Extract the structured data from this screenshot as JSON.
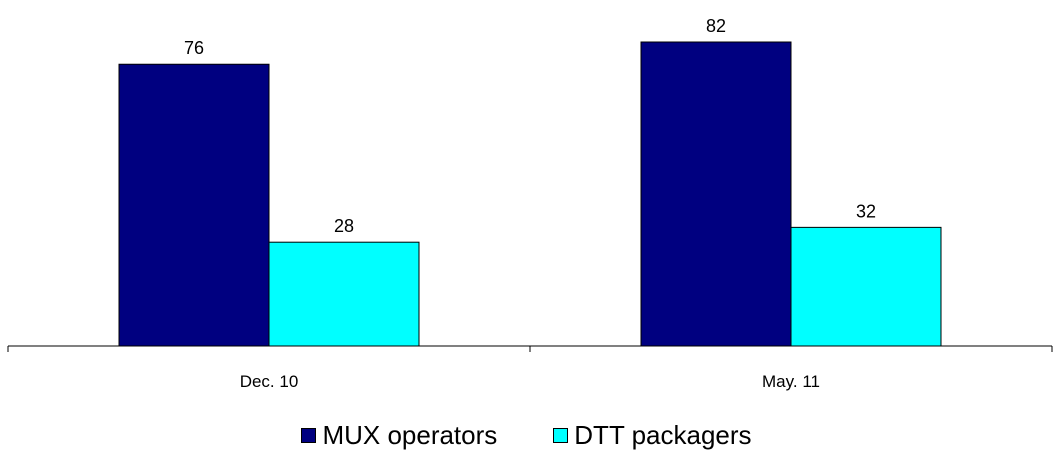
{
  "chart_data": {
    "type": "bar",
    "categories": [
      "Dec. 10",
      "May. 11"
    ],
    "series": [
      {
        "name": "MUX operators",
        "values": [
          76,
          82
        ],
        "color": "#000080"
      },
      {
        "name": "DTT packagers",
        "values": [
          28,
          32
        ],
        "color": "#00FFFF"
      }
    ],
    "ylim": [
      0,
      82
    ],
    "grid": false,
    "legend_position": "bottom"
  }
}
